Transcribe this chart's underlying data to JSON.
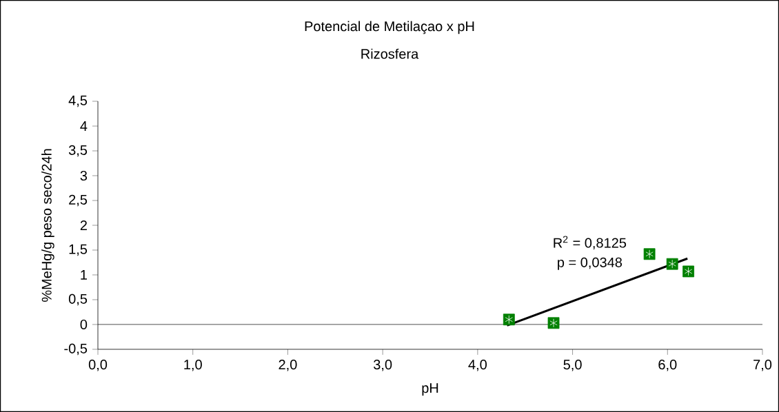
{
  "chart_data": {
    "type": "scatter",
    "title": "Potencial de Metilaçao x pH",
    "subtitle": "Rizosfera",
    "xlabel": "pH",
    "ylabel": "%MeHg/g peso seco/24h",
    "annotations": [
      "R$^{2}$ = 0,8125",
      "p = 0,0348"
    ],
    "series": [
      {
        "color": "#008000",
        "marker": "square",
        "x": [
          4.33,
          4.8,
          5.81,
          6.05,
          6.22
        ],
        "values": [
          0.1,
          0.03,
          1.42,
          1.22,
          1.07
        ]
      },
      {
        "type": "line",
        "color": "#000000",
        "marker": "none",
        "x": [
          4.31,
          6.21
        ],
        "values": [
          -0.02,
          1.33
        ]
      }
    ],
    "xlim": [
      0,
      7
    ],
    "ylim": [
      -0.5,
      4.5
    ],
    "xticks": [
      {
        "value": 0,
        "label": "0,0"
      },
      {
        "value": 1,
        "label": "1,0"
      },
      {
        "value": 2,
        "label": "2,0"
      },
      {
        "value": 3,
        "label": "3,0"
      },
      {
        "value": 4,
        "label": "4,0"
      },
      {
        "value": 5,
        "label": "5,0"
      },
      {
        "value": 6,
        "label": "6,0"
      },
      {
        "value": 7,
        "label": "7,0"
      }
    ],
    "yticks": [
      {
        "value": -0.5,
        "label": "-0,5"
      },
      0,
      {
        "value": 0.5,
        "label": "0,5"
      },
      1,
      {
        "value": 1.5,
        "label": "1,5"
      },
      2,
      {
        "value": 2.5,
        "label": "2,5"
      },
      3,
      {
        "value": 3.5,
        "label": "3,5"
      },
      4,
      {
        "value": 4.5,
        "label": "4,5"
      }
    ],
    "ref_lines": [
      {
        "axis": "y",
        "value": 0,
        "color": "#000000"
      }
    ],
    "grid": false
  }
}
